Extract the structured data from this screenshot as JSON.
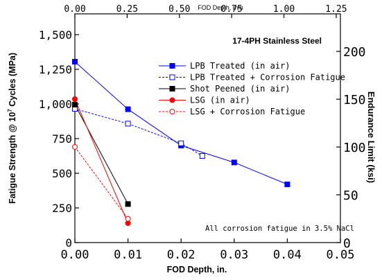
{
  "chart_data": {
    "type": "line",
    "title": "17-4PH Stainless Steel",
    "xlabel": "FOD Depth, in.",
    "ylabel": "Fatigue Strength @ 10^7 Cycles (MPa)",
    "ylabel_parts": {
      "base": "Fatigue Strength @ 10",
      "sup": "7",
      "rest": " Cycles (MPa)"
    },
    "x2label": "FOD Depth, mm",
    "y2label": "Endurance Limit (ksi)",
    "xlim": [
      0,
      0.05
    ],
    "ylim": [
      0,
      1650
    ],
    "x2lim": [
      0,
      1.27
    ],
    "y2lim": [
      0,
      239.3
    ],
    "xticks": [
      "0.00",
      "0.01",
      "0.02",
      "0.03",
      "0.04",
      "0.05"
    ],
    "xtick_values": [
      0,
      0.01,
      0.02,
      0.03,
      0.04,
      0.05
    ],
    "yticks": [
      "0",
      "250",
      "500",
      "750",
      "1,000",
      "1,250",
      "1,500"
    ],
    "ytick_values": [
      0,
      250,
      500,
      750,
      1000,
      1250,
      1500
    ],
    "x2ticks": [
      "0.00",
      "0.25",
      "0.50",
      "0.75",
      "1.00",
      "1.25"
    ],
    "x2tick_values": [
      0,
      0.25,
      0.5,
      0.75,
      1.0,
      1.25
    ],
    "y2ticks": [
      "0",
      "50",
      "100",
      "150",
      "200"
    ],
    "y2tick_values": [
      0,
      50,
      100,
      150,
      200
    ],
    "annotation": "All corrosion fatigue in 3.5% NaCl",
    "legend_position": "upper-right",
    "grid": false,
    "series": [
      {
        "name": "LPB Treated (in air)",
        "color": "#0000ff",
        "marker": "square",
        "filled": true,
        "dashed": false,
        "x": [
          0,
          0.01,
          0.02,
          0.03,
          0.04
        ],
        "y": [
          1305,
          962,
          700,
          578,
          420
        ]
      },
      {
        "name": "LPB Treated + Corrosion Fatigue",
        "color": "#0000ff",
        "marker": "square",
        "filled": false,
        "dashed": true,
        "x": [
          0,
          0.01,
          0.02,
          0.024
        ],
        "y": [
          965,
          858,
          716,
          625
        ]
      },
      {
        "name": "Shot Peened (in air)",
        "color": "#000000",
        "marker": "square",
        "filled": true,
        "dashed": false,
        "x": [
          0,
          0.01
        ],
        "y": [
          995,
          278
        ]
      },
      {
        "name": "LSG (in air)",
        "color": "#ff0000",
        "marker": "circle",
        "filled": true,
        "dashed": false,
        "x": [
          0,
          0.01
        ],
        "y": [
          1035,
          140
        ]
      },
      {
        "name": "LSG + Corrosion Fatigue",
        "color": "#ff0000",
        "marker": "circle",
        "filled": false,
        "dashed": true,
        "x": [
          0,
          0.01
        ],
        "y": [
          690,
          172
        ]
      }
    ]
  }
}
